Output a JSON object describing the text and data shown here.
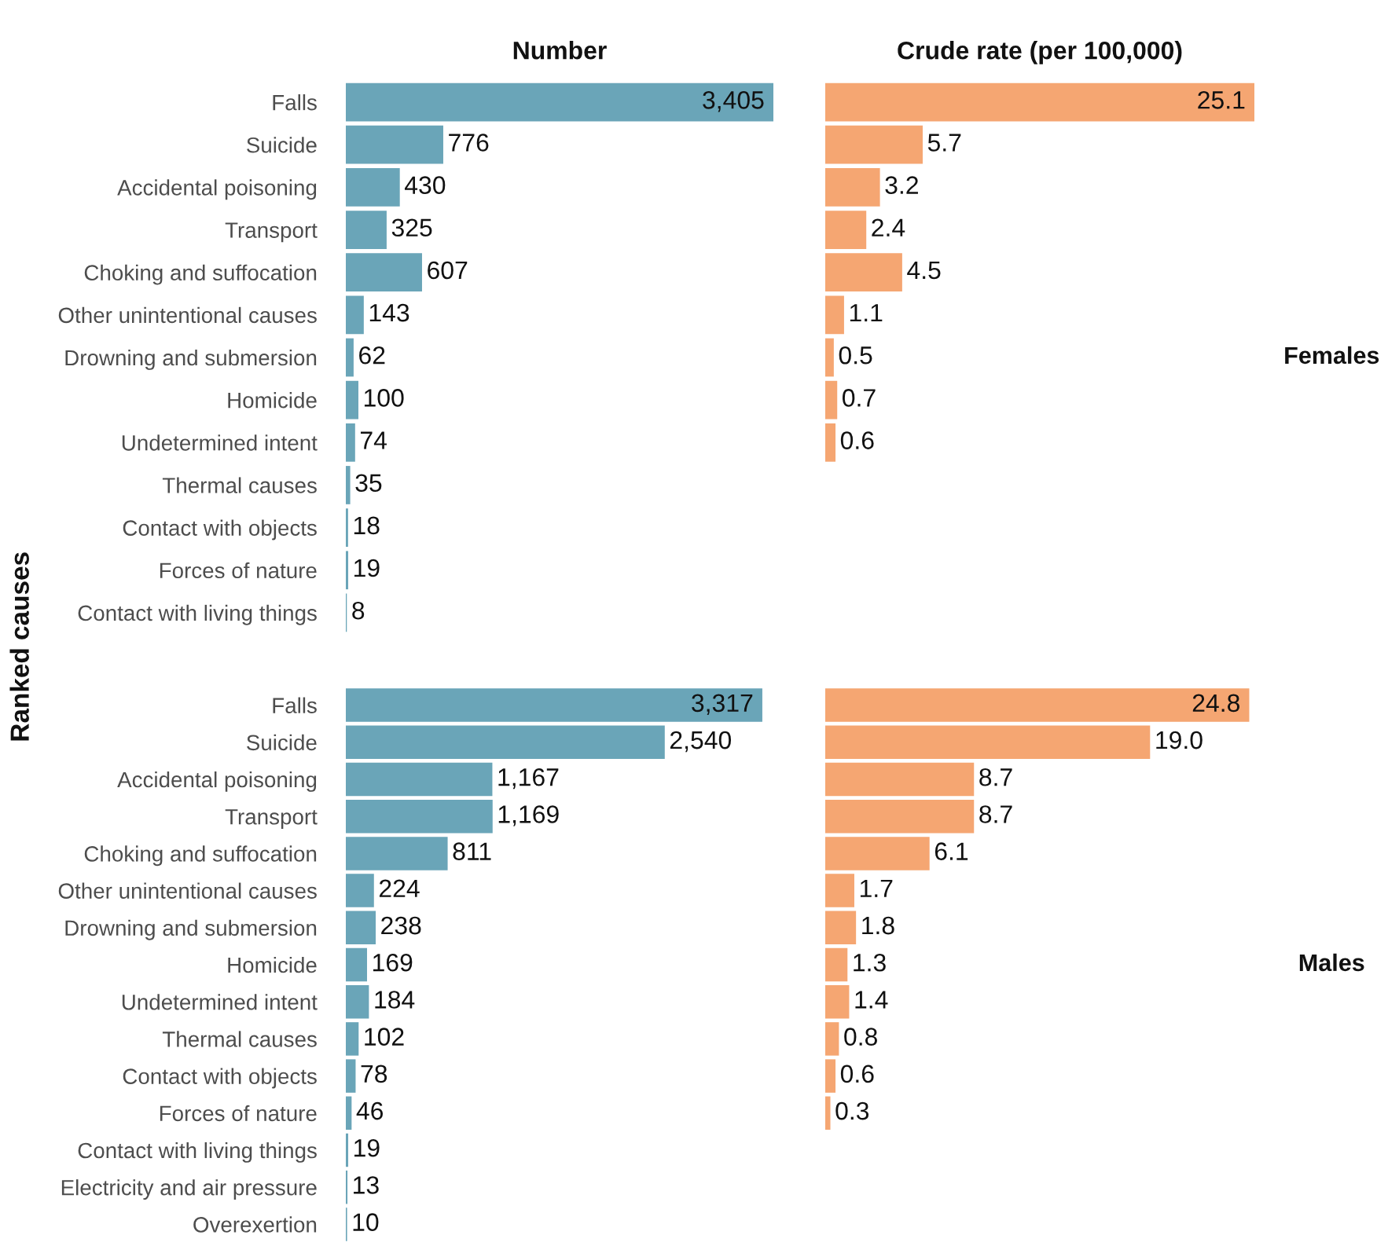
{
  "chart_data": [
    {
      "type": "bar",
      "orientation": "horizontal",
      "title": "Number",
      "ylabel": "Ranked causes",
      "tick_labels": "y",
      "color": "#6aa5b8",
      "categories": [
        "Falls",
        "Suicide",
        "Accidental poisoning",
        "Transport",
        "Choking and suffocation",
        "Other unintentional causes",
        "Drowning and submersion",
        "Homicide",
        "Undetermined intent",
        "Thermal causes",
        "Contact with objects",
        "Forces of nature",
        "Contact with living things"
      ],
      "values": [
        3405,
        776,
        430,
        325,
        607,
        143,
        62,
        100,
        74,
        35,
        18,
        19,
        8
      ],
      "value_labels": [
        "3,405",
        "776",
        "430",
        "325",
        "607",
        "143",
        "62",
        "100",
        "74",
        "35",
        "18",
        "19",
        "8"
      ]
    },
    {
      "type": "bar",
      "orientation": "horizontal",
      "title": "Crude rate (per 100,000)",
      "tick_labels": false,
      "color": "#f5a672",
      "annotations": [
        "Females"
      ],
      "categories": [
        null,
        null,
        null,
        null,
        null,
        null,
        null,
        null,
        null,
        null,
        null,
        null,
        null
      ],
      "values": [
        25.1,
        5.7,
        3.2,
        2.4,
        4.5,
        1.1,
        0.5,
        0.7,
        0.6,
        null,
        null,
        null,
        null
      ],
      "value_labels": [
        "25.1",
        "5.7",
        "3.2",
        "2.4",
        "4.5",
        "1.1",
        "0.5",
        "0.7",
        "0.6",
        null,
        null,
        null,
        null
      ]
    },
    {
      "type": "bar",
      "orientation": "horizontal",
      "tick_labels": "y",
      "color": "#6aa5b8",
      "categories": [
        "Falls",
        "Suicide",
        "Accidental poisoning",
        "Transport",
        "Choking and suffocation",
        "Other unintentional causes",
        "Drowning and submersion",
        "Homicide",
        "Undetermined intent",
        "Thermal causes",
        "Contact with objects",
        "Forces of nature",
        "Contact with living things",
        "Electricity and air pressure",
        "Overexertion"
      ],
      "values": [
        3317,
        2540,
        1167,
        1169,
        811,
        224,
        238,
        169,
        184,
        102,
        78,
        46,
        19,
        13,
        10
      ],
      "value_labels": [
        "3,317",
        "2,540",
        "1,167",
        "1,169",
        "811",
        "224",
        "238",
        "169",
        "184",
        "102",
        "78",
        "46",
        "19",
        "13",
        "10"
      ]
    },
    {
      "type": "bar",
      "orientation": "horizontal",
      "tick_labels": false,
      "color": "#f5a672",
      "annotations": [
        "Males"
      ],
      "categories": [
        null,
        null,
        null,
        null,
        null,
        null,
        null,
        null,
        null,
        null,
        null,
        null,
        null,
        null,
        null
      ],
      "values": [
        24.8,
        19.0,
        8.7,
        8.7,
        6.1,
        1.7,
        1.8,
        1.3,
        1.4,
        0.8,
        0.6,
        0.3,
        null,
        null,
        null
      ],
      "value_labels": [
        "24.8",
        "19.0",
        "8.7",
        "8.7",
        "6.1",
        "1.7",
        "1.8",
        "1.3",
        "1.4",
        "0.8",
        "0.6",
        "0.3",
        null,
        null,
        null
      ]
    }
  ]
}
